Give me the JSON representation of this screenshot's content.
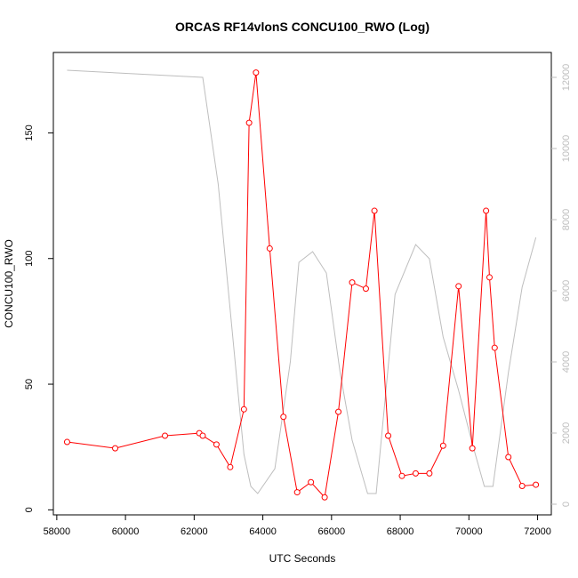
{
  "chart_data": {
    "type": "line",
    "title": "ORCAS RF14vlonS CONCU100_RWO (Log)",
    "xlabel": "UTC Seconds",
    "ylabel": "CONCU100_RWO",
    "xlim": [
      57900,
      72400
    ],
    "ylim": [
      -2,
      182
    ],
    "y2lim": [
      -300,
      12700
    ],
    "x_ticks": [
      58000,
      60000,
      62000,
      64000,
      66000,
      68000,
      70000,
      72000
    ],
    "y_ticks": [
      0,
      50,
      100,
      150
    ],
    "y2_ticks": [
      0,
      2000,
      4000,
      6000,
      8000,
      10000,
      12000
    ],
    "grid": false,
    "legend": "none",
    "colors": {
      "primary": "#ff0000",
      "secondary": "#bebebe",
      "axis": "#000000"
    },
    "series": [
      {
        "axis": "left",
        "style": "line+points",
        "x": [
          58300,
          59700,
          61150,
          62150,
          62250,
          62650,
          63050,
          63450,
          63600,
          63800,
          64200,
          64600,
          65000,
          65400,
          65800,
          66200,
          66600,
          67000,
          67250,
          67650,
          68050,
          68450,
          68850,
          69250,
          69700,
          70100,
          70500,
          70600,
          70750,
          71150,
          71550,
          71950
        ],
        "y": [
          27,
          24.5,
          29.5,
          30.5,
          29.5,
          26,
          17,
          40,
          154,
          174,
          104,
          37,
          7,
          11,
          5,
          39,
          90.5,
          88,
          119,
          29.5,
          13.5,
          14.5,
          14.5,
          25.5,
          89,
          24.5,
          119,
          92.5,
          64.5,
          21,
          9.5,
          10
        ]
      },
      {
        "axis": "right",
        "style": "line",
        "x": [
          58300,
          62250,
          62700,
          63450,
          63650,
          63850,
          64350,
          64800,
          65050,
          65450,
          65850,
          66250,
          66600,
          67050,
          67300,
          67850,
          68450,
          68850,
          69250,
          69700,
          70100,
          70450,
          70700,
          71150,
          71550,
          71950
        ],
        "y": [
          12200,
          12000,
          9000,
          1400,
          500,
          300,
          1000,
          4000,
          6800,
          7100,
          6500,
          3700,
          1800,
          300,
          300,
          5900,
          7300,
          6900,
          4700,
          3200,
          1700,
          500,
          500,
          3700,
          6100,
          7500
        ]
      }
    ]
  }
}
